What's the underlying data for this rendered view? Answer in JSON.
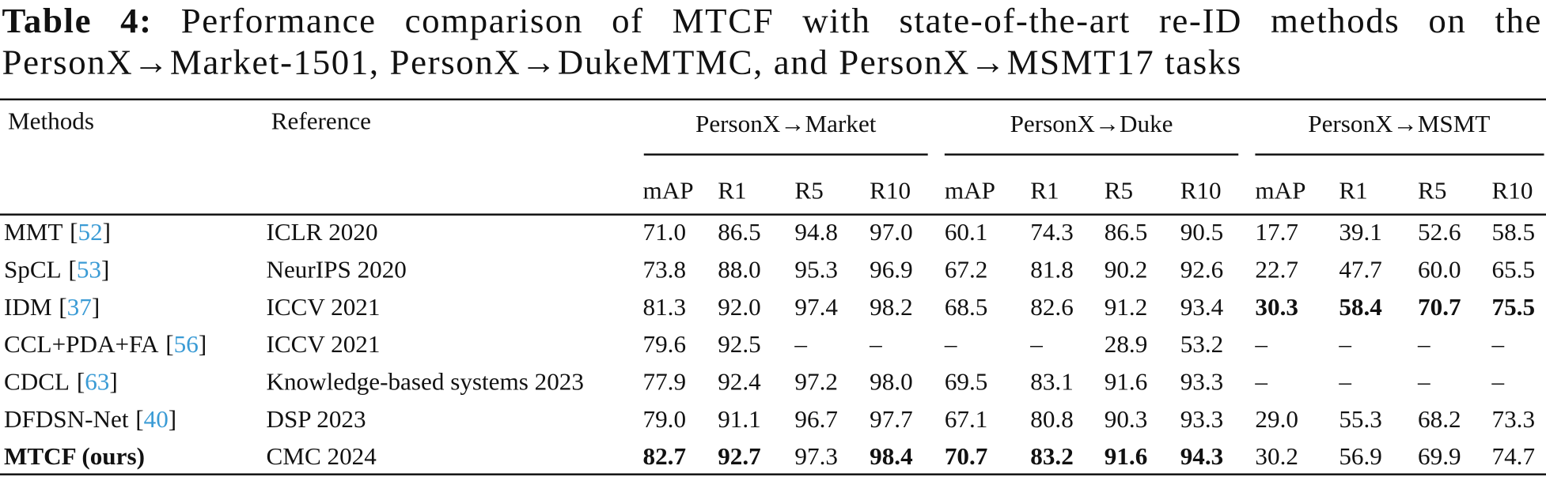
{
  "caption": {
    "label": "Table 4:",
    "text": "Performance comparison of MTCF with state-of-the-art re-ID methods on the PersonX→Market-1501, PersonX→DukeMTMC, and PersonX→MSMT17 tasks"
  },
  "table": {
    "header": {
      "methods": "Methods",
      "reference": "Reference",
      "groups": [
        "PersonX→Market",
        "PersonX→Duke",
        "PersonX→MSMT"
      ],
      "metrics": [
        "mAP",
        "R1",
        "R5",
        "R10",
        "mAP",
        "R1",
        "R5",
        "R10",
        "mAP",
        "R1",
        "R5",
        "R10"
      ]
    },
    "rows": [
      {
        "method": "MMT",
        "citation": [
          "[",
          "52",
          "]"
        ],
        "reference": "ICLR 2020",
        "values": [
          "71.0",
          "86.5",
          "94.8",
          "97.0",
          "60.1",
          "74.3",
          "86.5",
          "90.5",
          "17.7",
          "39.1",
          "52.6",
          "58.5"
        ],
        "bold": []
      },
      {
        "method": "SpCL",
        "citation": [
          "[",
          "53",
          "]"
        ],
        "reference": "NeurIPS 2020",
        "values": [
          "73.8",
          "88.0",
          "95.3",
          "96.9",
          "67.2",
          "81.8",
          "90.2",
          "92.6",
          "22.7",
          "47.7",
          "60.0",
          "65.5"
        ],
        "bold": []
      },
      {
        "method": "IDM",
        "citation": [
          "[",
          "37",
          "]"
        ],
        "reference": "ICCV 2021",
        "values": [
          "81.3",
          "92.0",
          "97.4",
          "98.2",
          "68.5",
          "82.6",
          "91.2",
          "93.4",
          "30.3",
          "58.4",
          "70.7",
          "75.5"
        ],
        "bold": [
          8,
          9,
          10,
          11
        ]
      },
      {
        "method": "CCL+PDA+FA",
        "citation": [
          "[",
          "56",
          "]"
        ],
        "reference": "ICCV 2021",
        "values": [
          "79.6",
          "92.5",
          "–",
          "–",
          "–",
          "–",
          "28.9",
          "53.2",
          "–",
          "–",
          "–",
          "–"
        ],
        "bold": []
      },
      {
        "method": "CDCL",
        "citation": [
          "[",
          "63",
          "]"
        ],
        "reference": "Knowledge-based systems 2023",
        "values": [
          "77.9",
          "92.4",
          "97.2",
          "98.0",
          "69.5",
          "83.1",
          "91.6",
          "93.3",
          "–",
          "–",
          "–",
          "–"
        ],
        "bold": []
      },
      {
        "method": "DFDSN-Net",
        "citation": [
          "[",
          "40",
          "]"
        ],
        "reference": "DSP 2023",
        "values": [
          "79.0",
          "91.1",
          "96.7",
          "97.7",
          "67.1",
          "80.8",
          "90.3",
          "93.3",
          "29.0",
          "55.3",
          "68.2",
          "73.3"
        ],
        "bold": []
      },
      {
        "method": "MTCF (ours)",
        "method_bold": true,
        "reference": "CMC 2024",
        "values": [
          "82.7",
          "92.7",
          "97.3",
          "98.4",
          "70.7",
          "83.2",
          "91.6",
          "94.3",
          "30.2",
          "56.9",
          "69.9",
          "74.7"
        ],
        "bold": [
          0,
          1,
          3,
          4,
          5,
          6,
          7
        ]
      }
    ]
  }
}
